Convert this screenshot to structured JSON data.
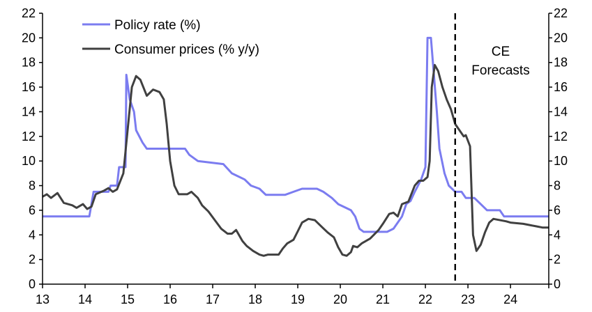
{
  "chart_data": {
    "type": "line",
    "title": "",
    "xlabel": "",
    "ylabel": "",
    "xlim": [
      2013,
      2024.9
    ],
    "ylim": [
      0,
      22
    ],
    "y_ticks": [
      "0",
      "2",
      "4",
      "6",
      "8",
      "10",
      "12",
      "14",
      "16",
      "18",
      "20",
      "22"
    ],
    "y_tick_values": [
      0,
      2,
      4,
      6,
      8,
      10,
      12,
      14,
      16,
      18,
      20,
      22
    ],
    "x_ticks": [
      "13",
      "14",
      "15",
      "16",
      "17",
      "18",
      "19",
      "20",
      "21",
      "22",
      "23",
      "24"
    ],
    "x_tick_values": [
      2013,
      2014,
      2015,
      2016,
      2017,
      2018,
      2019,
      2020,
      2021,
      2022,
      2023,
      2024
    ],
    "grid": false,
    "legend_position": "top-left",
    "forecast_start": 2022.7,
    "annotation": [
      "CE",
      "Forecasts"
    ],
    "series": [
      {
        "name": "Policy rate (%)",
        "color": "#7b7cf0",
        "points": [
          [
            2013.0,
            5.5
          ],
          [
            2014.1,
            5.5
          ],
          [
            2014.2,
            7.5
          ],
          [
            2014.55,
            7.5
          ],
          [
            2014.6,
            8.0
          ],
          [
            2014.75,
            8.0
          ],
          [
            2014.8,
            9.5
          ],
          [
            2014.95,
            9.5
          ],
          [
            2014.97,
            17.0
          ],
          [
            2015.05,
            15.0
          ],
          [
            2015.15,
            14.0
          ],
          [
            2015.2,
            12.5
          ],
          [
            2015.35,
            11.5
          ],
          [
            2015.45,
            11.0
          ],
          [
            2016.35,
            11.0
          ],
          [
            2016.45,
            10.5
          ],
          [
            2016.65,
            10.0
          ],
          [
            2017.25,
            9.75
          ],
          [
            2017.45,
            9.0
          ],
          [
            2017.75,
            8.5
          ],
          [
            2017.9,
            8.0
          ],
          [
            2018.1,
            7.75
          ],
          [
            2018.25,
            7.25
          ],
          [
            2018.7,
            7.25
          ],
          [
            2018.9,
            7.5
          ],
          [
            2019.1,
            7.75
          ],
          [
            2019.45,
            7.75
          ],
          [
            2019.6,
            7.5
          ],
          [
            2019.8,
            7.0
          ],
          [
            2019.95,
            6.5
          ],
          [
            2020.1,
            6.25
          ],
          [
            2020.25,
            6.0
          ],
          [
            2020.35,
            5.5
          ],
          [
            2020.45,
            4.5
          ],
          [
            2020.55,
            4.25
          ],
          [
            2021.1,
            4.25
          ],
          [
            2021.25,
            4.5
          ],
          [
            2021.35,
            5.0
          ],
          [
            2021.45,
            5.5
          ],
          [
            2021.55,
            6.5
          ],
          [
            2021.65,
            6.75
          ],
          [
            2021.75,
            7.5
          ],
          [
            2021.9,
            8.5
          ],
          [
            2022.0,
            9.5
          ],
          [
            2022.05,
            20.0
          ],
          [
            2022.13,
            20.0
          ],
          [
            2022.27,
            14.0
          ],
          [
            2022.33,
            11.0
          ],
          [
            2022.45,
            9.0
          ],
          [
            2022.55,
            8.0
          ],
          [
            2022.7,
            7.5
          ],
          [
            2022.85,
            7.5
          ],
          [
            2022.95,
            7.0
          ],
          [
            2023.15,
            7.0
          ],
          [
            2023.3,
            6.5
          ],
          [
            2023.45,
            6.0
          ],
          [
            2023.75,
            6.0
          ],
          [
            2023.85,
            5.5
          ],
          [
            2024.9,
            5.5
          ]
        ]
      },
      {
        "name": "Consumer prices (% y/y)",
        "color": "#404040",
        "points": [
          [
            2013.0,
            7.1
          ],
          [
            2013.1,
            7.3
          ],
          [
            2013.2,
            7.0
          ],
          [
            2013.35,
            7.4
          ],
          [
            2013.5,
            6.6
          ],
          [
            2013.7,
            6.4
          ],
          [
            2013.8,
            6.2
          ],
          [
            2013.95,
            6.5
          ],
          [
            2014.05,
            6.1
          ],
          [
            2014.15,
            6.3
          ],
          [
            2014.25,
            7.3
          ],
          [
            2014.45,
            7.6
          ],
          [
            2014.55,
            7.8
          ],
          [
            2014.65,
            7.5
          ],
          [
            2014.75,
            7.7
          ],
          [
            2014.9,
            9.0
          ],
          [
            2015.0,
            12.5
          ],
          [
            2015.1,
            16.0
          ],
          [
            2015.2,
            16.9
          ],
          [
            2015.3,
            16.6
          ],
          [
            2015.45,
            15.3
          ],
          [
            2015.6,
            15.8
          ],
          [
            2015.75,
            15.6
          ],
          [
            2015.85,
            15.0
          ],
          [
            2015.92,
            13.0
          ],
          [
            2016.0,
            10.0
          ],
          [
            2016.1,
            8.0
          ],
          [
            2016.2,
            7.3
          ],
          [
            2016.4,
            7.3
          ],
          [
            2016.5,
            7.5
          ],
          [
            2016.65,
            7.0
          ],
          [
            2016.75,
            6.4
          ],
          [
            2016.9,
            5.9
          ],
          [
            2017.05,
            5.2
          ],
          [
            2017.2,
            4.5
          ],
          [
            2017.35,
            4.1
          ],
          [
            2017.45,
            4.1
          ],
          [
            2017.55,
            4.4
          ],
          [
            2017.7,
            3.5
          ],
          [
            2017.8,
            3.1
          ],
          [
            2017.95,
            2.7
          ],
          [
            2018.1,
            2.4
          ],
          [
            2018.2,
            2.3
          ],
          [
            2018.3,
            2.4
          ],
          [
            2018.45,
            2.4
          ],
          [
            2018.55,
            2.4
          ],
          [
            2018.65,
            2.9
          ],
          [
            2018.75,
            3.3
          ],
          [
            2018.9,
            3.6
          ],
          [
            2019.0,
            4.3
          ],
          [
            2019.1,
            5.0
          ],
          [
            2019.25,
            5.3
          ],
          [
            2019.4,
            5.2
          ],
          [
            2019.55,
            4.7
          ],
          [
            2019.7,
            4.2
          ],
          [
            2019.85,
            3.8
          ],
          [
            2019.95,
            3.0
          ],
          [
            2020.05,
            2.4
          ],
          [
            2020.15,
            2.3
          ],
          [
            2020.25,
            2.6
          ],
          [
            2020.3,
            3.1
          ],
          [
            2020.4,
            3.0
          ],
          [
            2020.5,
            3.3
          ],
          [
            2020.7,
            3.7
          ],
          [
            2020.9,
            4.4
          ],
          [
            2021.0,
            4.9
          ],
          [
            2021.15,
            5.7
          ],
          [
            2021.25,
            5.8
          ],
          [
            2021.35,
            5.5
          ],
          [
            2021.45,
            6.5
          ],
          [
            2021.6,
            6.7
          ],
          [
            2021.75,
            8.0
          ],
          [
            2021.85,
            8.4
          ],
          [
            2021.95,
            8.4
          ],
          [
            2022.05,
            8.7
          ],
          [
            2022.1,
            10.0
          ],
          [
            2022.15,
            16.0
          ],
          [
            2022.22,
            17.8
          ],
          [
            2022.3,
            17.3
          ],
          [
            2022.4,
            16.0
          ],
          [
            2022.5,
            15.0
          ],
          [
            2022.6,
            14.2
          ],
          [
            2022.7,
            13.0
          ],
          [
            2022.8,
            12.5
          ],
          [
            2022.9,
            12.0
          ],
          [
            2022.95,
            12.1
          ],
          [
            2023.05,
            11.2
          ],
          [
            2023.12,
            4.0
          ],
          [
            2023.2,
            2.7
          ],
          [
            2023.3,
            3.2
          ],
          [
            2023.4,
            4.2
          ],
          [
            2023.5,
            5.0
          ],
          [
            2023.6,
            5.3
          ],
          [
            2023.9,
            5.1
          ],
          [
            2024.0,
            5.0
          ],
          [
            2024.3,
            4.9
          ],
          [
            2024.6,
            4.7
          ],
          [
            2024.75,
            4.6
          ],
          [
            2024.9,
            4.6
          ]
        ]
      }
    ]
  }
}
